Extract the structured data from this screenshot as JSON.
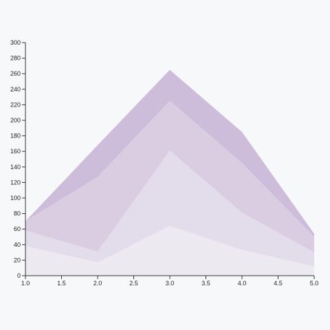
{
  "chart_data": {
    "type": "area",
    "stacked": true,
    "x": [
      1,
      2,
      3,
      4,
      5
    ],
    "series": [
      {
        "values": [
          38,
          17,
          64,
          33,
          12
        ],
        "color": "#ede9f1"
      },
      {
        "values": [
          20,
          14,
          97,
          48,
          18
        ],
        "color": "#e3dcea"
      },
      {
        "values": [
          12,
          96,
          64,
          64,
          20
        ],
        "color": "#dacde2"
      },
      {
        "values": [
          0,
          41,
          40,
          40,
          4
        ],
        "color": "#cdbddb"
      }
    ],
    "xlim": [
      1,
      5
    ],
    "ylim": [
      0,
      300
    ],
    "x_ticks": [
      1.0,
      1.5,
      2.0,
      2.5,
      3.0,
      3.5,
      4.0,
      4.5,
      5.0
    ],
    "y_ticks": [
      0,
      20,
      40,
      60,
      80,
      100,
      120,
      140,
      160,
      180,
      200,
      220,
      240,
      260,
      280,
      300
    ],
    "x_tick_labels": [
      "1.0",
      "1.5",
      "2.0",
      "2.5",
      "3.0",
      "3.5",
      "4.0",
      "4.5",
      "5.0"
    ],
    "y_tick_labels": [
      "0",
      "20",
      "40",
      "60",
      "80",
      "100",
      "120",
      "140",
      "160",
      "180",
      "200",
      "220",
      "240",
      "260",
      "280",
      "300"
    ],
    "title": "",
    "xlabel": "",
    "ylabel": "",
    "grid": false,
    "legend": "none"
  }
}
